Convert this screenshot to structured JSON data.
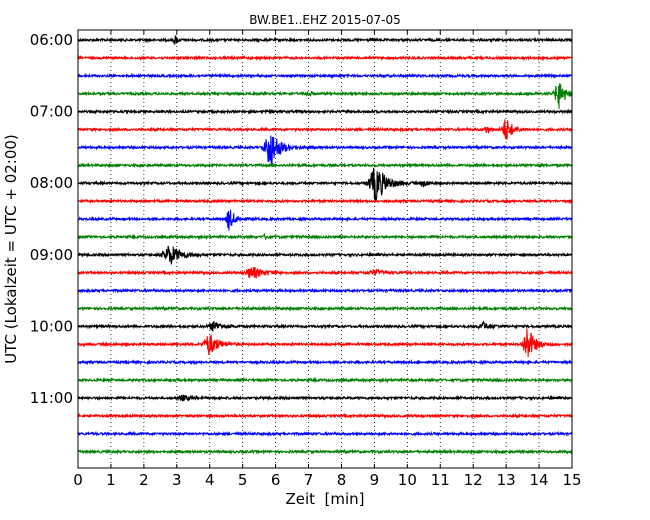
{
  "chart_data": {
    "type": "line",
    "title": "BW.BE1..EHZ 2015-07-05",
    "xlabel": "Zeit  [min]",
    "ylabel": "UTC (Lokalzeit = UTC + 02:00)",
    "xlim": [
      0,
      15
    ],
    "x_ticks": [
      "0",
      "1",
      "2",
      "3",
      "4",
      "5",
      "6",
      "7",
      "8",
      "9",
      "10",
      "11",
      "12",
      "13",
      "14",
      "15"
    ],
    "y_ticks": [
      {
        "label": "06:00",
        "trace": 0
      },
      {
        "label": "07:00",
        "trace": 4
      },
      {
        "label": "08:00",
        "trace": 8
      },
      {
        "label": "09:00",
        "trace": 12
      },
      {
        "label": "10:00",
        "trace": 16
      },
      {
        "label": "11:00",
        "trace": 20
      }
    ],
    "grid": "vertical-dotted",
    "trace_interval_min": 15,
    "trace_colors": [
      "#000000",
      "#ff0000",
      "#0000ff",
      "#007f00"
    ],
    "traces": [
      {
        "start": "06:00",
        "events": [
          {
            "t": 2.95,
            "amp": 0.25,
            "dur": 0.15
          }
        ]
      },
      {
        "start": "06:15",
        "events": []
      },
      {
        "start": "06:30",
        "events": []
      },
      {
        "start": "06:45",
        "events": [
          {
            "t": 7.0,
            "amp": 0.15,
            "dur": 0.2
          },
          {
            "t": 14.6,
            "amp": 0.75,
            "dur": 0.35
          }
        ]
      },
      {
        "start": "07:00",
        "events": []
      },
      {
        "start": "07:15",
        "events": [
          {
            "t": 12.4,
            "amp": 0.15,
            "dur": 0.3
          },
          {
            "t": 13.0,
            "amp": 0.6,
            "dur": 0.35
          }
        ]
      },
      {
        "start": "07:30",
        "events": [
          {
            "t": 5.85,
            "amp": 1.0,
            "dur": 0.5
          }
        ]
      },
      {
        "start": "07:45",
        "events": []
      },
      {
        "start": "08:00",
        "events": [
          {
            "t": 9.05,
            "amp": 0.9,
            "dur": 0.6
          },
          {
            "t": 10.5,
            "amp": 0.15,
            "dur": 0.3
          }
        ]
      },
      {
        "start": "08:15",
        "events": []
      },
      {
        "start": "08:30",
        "events": [
          {
            "t": 4.6,
            "amp": 0.55,
            "dur": 0.3
          }
        ]
      },
      {
        "start": "08:45",
        "events": [
          {
            "t": 5.7,
            "amp": 0.12,
            "dur": 0.2
          }
        ]
      },
      {
        "start": "09:00",
        "events": [
          {
            "t": 2.8,
            "amp": 0.5,
            "dur": 0.6
          }
        ]
      },
      {
        "start": "09:15",
        "events": [
          {
            "t": 5.3,
            "amp": 0.3,
            "dur": 0.6
          },
          {
            "t": 9.0,
            "amp": 0.12,
            "dur": 0.6
          }
        ]
      },
      {
        "start": "09:30",
        "events": []
      },
      {
        "start": "09:45",
        "events": []
      },
      {
        "start": "10:00",
        "events": [
          {
            "t": 4.15,
            "amp": 0.25,
            "dur": 0.5
          },
          {
            "t": 12.3,
            "amp": 0.2,
            "dur": 0.4
          }
        ]
      },
      {
        "start": "10:15",
        "events": [
          {
            "t": 4.0,
            "amp": 0.55,
            "dur": 0.5
          },
          {
            "t": 13.65,
            "amp": 0.9,
            "dur": 0.4
          }
        ]
      },
      {
        "start": "10:30",
        "events": []
      },
      {
        "start": "10:45",
        "events": []
      },
      {
        "start": "11:00",
        "events": [
          {
            "t": 3.2,
            "amp": 0.12,
            "dur": 0.5
          }
        ]
      },
      {
        "start": "11:15",
        "events": []
      },
      {
        "start": "11:30",
        "events": []
      },
      {
        "start": "11:45",
        "events": []
      }
    ]
  }
}
